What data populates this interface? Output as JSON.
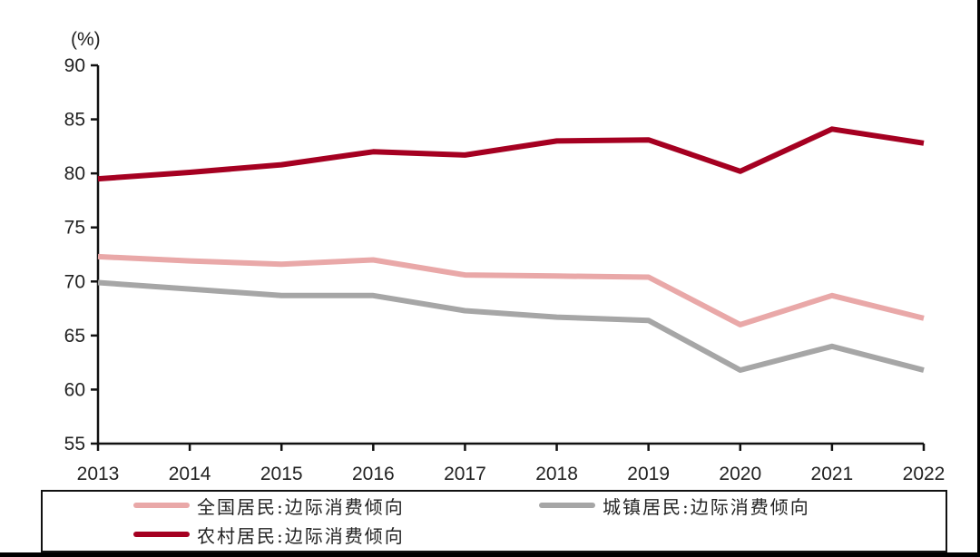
{
  "chart_data": {
    "type": "line",
    "title": "",
    "unit_label": "(%)",
    "xlabel": "",
    "ylabel": "(%)",
    "ylim": [
      55,
      90
    ],
    "yticks": [
      55,
      60,
      65,
      70,
      75,
      80,
      85,
      90
    ],
    "grid": false,
    "legend_position": "bottom",
    "categories": [
      "2013",
      "2014",
      "2015",
      "2016",
      "2017",
      "2018",
      "2019",
      "2020",
      "2021",
      "2022"
    ],
    "series": [
      {
        "name": "全国居民:边际消费倾向",
        "color": "#E9A8A8",
        "values": [
          72.3,
          71.9,
          71.6,
          72.0,
          70.6,
          70.5,
          70.4,
          66.0,
          68.7,
          66.6
        ]
      },
      {
        "name": "城镇居民:边际消费倾向",
        "color": "#A6A6A6",
        "values": [
          69.9,
          69.3,
          68.7,
          68.7,
          67.3,
          66.7,
          66.4,
          61.8,
          64.0,
          61.8
        ]
      },
      {
        "name": "农村居民:边际消费倾向",
        "color": "#A50021",
        "values": [
          79.5,
          80.1,
          80.8,
          82.0,
          81.7,
          83.0,
          83.1,
          80.2,
          84.1,
          82.8
        ]
      }
    ]
  },
  "legend": {
    "items": [
      {
        "label": "全国居民:边际消费倾向",
        "color": "#E9A8A8"
      },
      {
        "label": "城镇居民:边际消费倾向",
        "color": "#A6A6A6"
      },
      {
        "label": "农村居民:边际消费倾向",
        "color": "#A50021"
      }
    ]
  }
}
